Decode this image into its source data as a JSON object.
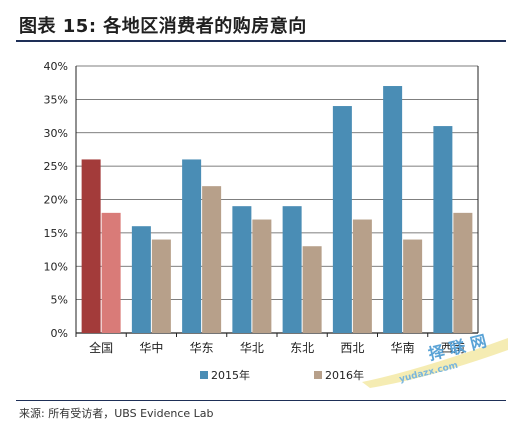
{
  "title": "图表 15: 各地区消费者的购房意向",
  "source": "来源: 所有受访者，UBS Evidence Lab",
  "watermark": {
    "text1": "择 联 网",
    "text2": "yudazx.com"
  },
  "colors": {
    "s2015": "#4a8db5",
    "s2016": "#b7a08a",
    "national2015": "#a33b3a",
    "national2016": "#d97b78",
    "title_rule": "#1e2f57"
  },
  "chart_data": {
    "type": "bar",
    "title": "",
    "xlabel": "",
    "ylabel": "",
    "categories": [
      "全国",
      "华中",
      "华东",
      "华北",
      "东北",
      "西北",
      "华南",
      "西南"
    ],
    "series": [
      {
        "name": "2015年",
        "values": [
          26,
          16,
          26,
          19,
          19,
          34,
          37,
          31
        ]
      },
      {
        "name": "2016年",
        "values": [
          18,
          14,
          22,
          17,
          13,
          17,
          14,
          18
        ]
      }
    ],
    "ylim": [
      0,
      40
    ],
    "yticks": [
      "0%",
      "5%",
      "10%",
      "15%",
      "20%",
      "25%",
      "30%",
      "35%",
      "40%"
    ],
    "grid": true,
    "legend_position": "bottom"
  }
}
